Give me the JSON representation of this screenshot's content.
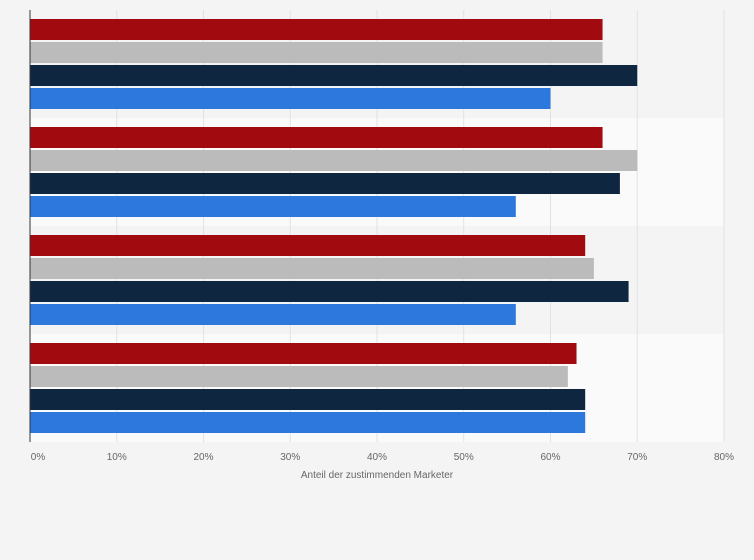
{
  "chart_data": {
    "type": "bar",
    "orientation": "horizontal",
    "categories": [
      "",
      "",
      "",
      ""
    ],
    "series": [
      {
        "color": "#a10a0e",
        "values": [
          66,
          66,
          64,
          63
        ]
      },
      {
        "color": "#bbbbbb",
        "values": [
          66,
          70,
          65,
          62
        ]
      },
      {
        "color": "#0f2640",
        "values": [
          70,
          68,
          69,
          64
        ]
      },
      {
        "color": "#2d78dc",
        "values": [
          60,
          56,
          56,
          64
        ]
      }
    ],
    "xlim": [
      0,
      80
    ],
    "xticks": [
      "0%",
      "10%",
      "20%",
      "30%",
      "40%",
      "50%",
      "60%",
      "70%",
      "80%"
    ],
    "xlabel": "Anteil der zustimmenden Marketer",
    "ylabel": "",
    "title": "",
    "grid": true,
    "legend": "none"
  }
}
